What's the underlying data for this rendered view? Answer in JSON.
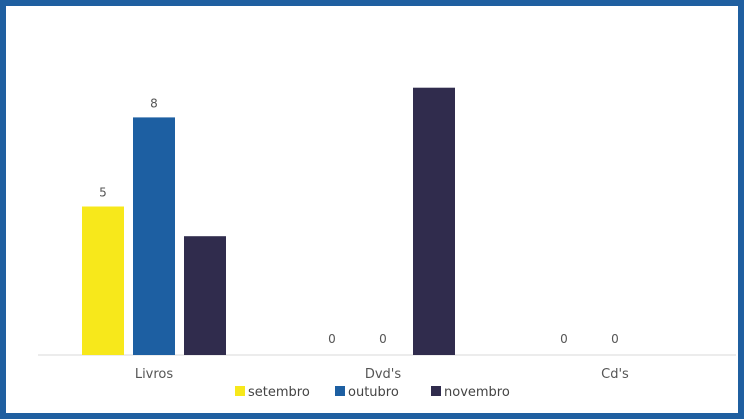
{
  "chart_data": {
    "type": "bar",
    "categories": [
      "Livros",
      "Dvd's",
      "Cd's"
    ],
    "series": [
      {
        "name": "setembro",
        "color": "#f7e81b",
        "values": [
          5,
          0,
          0
        ],
        "labels": [
          "5",
          "0",
          "0"
        ]
      },
      {
        "name": "outubro",
        "color": "#1d5fa2",
        "values": [
          8,
          0,
          0
        ],
        "labels": [
          "8",
          "0",
          "0"
        ]
      },
      {
        "name": "novembro",
        "color": "#302c4d",
        "values": [
          4,
          9,
          null
        ],
        "labels": [
          "",
          "",
          ""
        ]
      }
    ],
    "ylim": [
      0,
      10
    ],
    "grid": false,
    "legend": "bottom"
  }
}
